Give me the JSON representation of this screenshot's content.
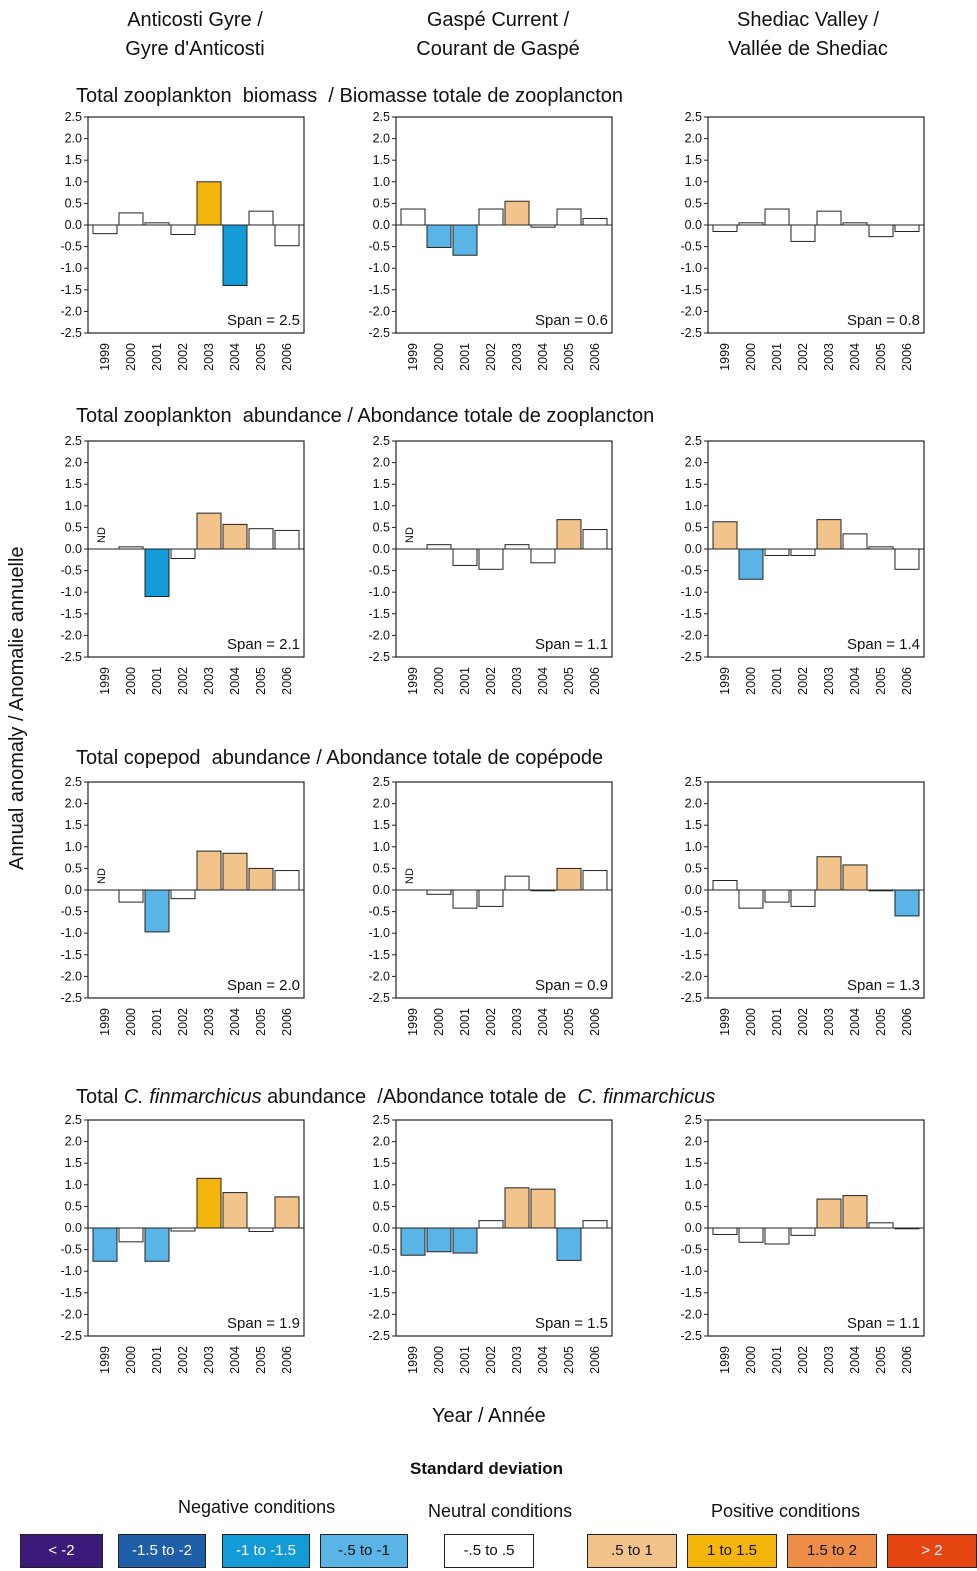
{
  "column_headers": [
    [
      "Anticosti Gyre /",
      "Gyre d'Anticosti"
    ],
    [
      "Gaspé Current /",
      "Courant de Gaspé"
    ],
    [
      "Shediac Valley /",
      "Vallée de Shediac"
    ]
  ],
  "row_titles": [
    "Total zooplankton  biomass  / Biomasse totale de zooplancton",
    "Total zooplankton  abundance / Abondance totale de zooplancton",
    "Total copepod  abundance / Abondance totale de copépode",
    {
      "pre": "Total ",
      "italic1": "C. finmarchicus",
      "mid": " abundance  /Abondance totale de  ",
      "italic2": "C. finmarchicus"
    }
  ],
  "y_axis_title": "Annual anomaly  / Anomalie annuelle",
  "x_axis_title": "Year / Année",
  "legend": {
    "title": "Standard deviation",
    "groups": [
      "Negative conditions",
      "Neutral conditions",
      "Positive conditions"
    ],
    "items": [
      {
        "label": "< -2",
        "color": "#3b1a7a",
        "text_color": "#ffffff"
      },
      {
        "label": "-1.5 to -2",
        "color": "#1f5fa8",
        "text_color": "#ffffff"
      },
      {
        "label": "-1 to -1.5",
        "color": "#139bd8",
        "text_color": "#ffffff"
      },
      {
        "label": "-.5 to -1",
        "color": "#5ab4e5",
        "text_color": "#111111"
      },
      {
        "label": "-.5 to .5",
        "color": "#ffffff",
        "text_color": "#111111"
      },
      {
        "label": ".5 to 1",
        "color": "#f2c48c",
        "text_color": "#111111"
      },
      {
        "label": "1 to 1.5",
        "color": "#f4b50c",
        "text_color": "#111111"
      },
      {
        "label": "1.5 to 2",
        "color": "#ee8d48",
        "text_color": "#111111"
      },
      {
        "label": "> 2",
        "color": "#e64611",
        "text_color": "#ffffff"
      }
    ]
  },
  "chart_data": [
    {
      "type": "bar",
      "region": "Anticosti Gyre",
      "variable": "Total zooplankton biomass",
      "categories": [
        "1999",
        "2000",
        "2001",
        "2002",
        "2003",
        "2004",
        "2005",
        "2006"
      ],
      "values": [
        -0.2,
        0.28,
        0.05,
        -0.22,
        1.0,
        -1.4,
        0.32,
        -0.48
      ],
      "ylim": [
        -2.5,
        2.5
      ],
      "yticks": [
        "2.5",
        "2.0",
        "1.5",
        "1.0",
        "0.5",
        "0.0",
        "-0.5",
        "-1.0",
        "-1.5",
        "-2.0",
        "-2.5"
      ],
      "span": "Span = 2.5",
      "nd": null
    },
    {
      "type": "bar",
      "region": "Gaspé Current",
      "variable": "Total zooplankton biomass",
      "categories": [
        "1999",
        "2000",
        "2001",
        "2002",
        "2003",
        "2004",
        "2005",
        "2006"
      ],
      "values": [
        0.37,
        -0.52,
        -0.7,
        0.37,
        0.55,
        -0.05,
        0.37,
        0.15
      ],
      "ylim": [
        -2.5,
        2.5
      ],
      "yticks": [
        "2.5",
        "2.0",
        "1.5",
        "1.0",
        "0.5",
        "0.0",
        "-0.5",
        "-1.0",
        "-1.5",
        "-2.0",
        "-2.5"
      ],
      "span": "Span = 0.6",
      "nd": null
    },
    {
      "type": "bar",
      "region": "Shediac Valley",
      "variable": "Total zooplankton biomass",
      "categories": [
        "1999",
        "2000",
        "2001",
        "2002",
        "2003",
        "2004",
        "2005",
        "2006"
      ],
      "values": [
        -0.15,
        0.05,
        0.37,
        -0.38,
        0.32,
        0.05,
        -0.27,
        -0.15
      ],
      "ylim": [
        -2.5,
        2.5
      ],
      "yticks": [
        "2.5",
        "2.0",
        "1.5",
        "1.0",
        "0.5",
        "0.0",
        "-0.5",
        "-1.0",
        "-1.5",
        "-2.0",
        "-2.5"
      ],
      "span": "Span = 0.8",
      "nd": null
    },
    {
      "type": "bar",
      "region": "Anticosti Gyre",
      "variable": "Total zooplankton abundance",
      "categories": [
        "1999",
        "2000",
        "2001",
        "2002",
        "2003",
        "2004",
        "2005",
        "2006"
      ],
      "values": [
        null,
        0.05,
        -1.1,
        -0.22,
        0.83,
        0.57,
        0.47,
        0.43
      ],
      "ylim": [
        -2.5,
        2.5
      ],
      "yticks": [
        "2.5",
        "2.0",
        "1.5",
        "1.0",
        "0.5",
        "0.0",
        "-0.5",
        "-1.0",
        "-1.5",
        "-2.0",
        "-2.5"
      ],
      "span": "Span = 2.1",
      "nd": "ND"
    },
    {
      "type": "bar",
      "region": "Gaspé Current",
      "variable": "Total zooplankton abundance",
      "categories": [
        "1999",
        "2000",
        "2001",
        "2002",
        "2003",
        "2004",
        "2005",
        "2006"
      ],
      "values": [
        null,
        0.1,
        -0.38,
        -0.47,
        0.1,
        -0.32,
        0.68,
        0.45
      ],
      "ylim": [
        -2.5,
        2.5
      ],
      "yticks": [
        "2.5",
        "2.0",
        "1.5",
        "1.0",
        "0.5",
        "0.0",
        "-0.5",
        "-1.0",
        "-1.5",
        "-2.0",
        "-2.5"
      ],
      "span": "Span = 1.1",
      "nd": "ND"
    },
    {
      "type": "bar",
      "region": "Shediac Valley",
      "variable": "Total zooplankton abundance",
      "categories": [
        "1999",
        "2000",
        "2001",
        "2002",
        "2003",
        "2004",
        "2005",
        "2006"
      ],
      "values": [
        0.63,
        -0.7,
        -0.15,
        -0.15,
        0.68,
        0.35,
        0.05,
        -0.47
      ],
      "ylim": [
        -2.5,
        2.5
      ],
      "yticks": [
        "2.5",
        "2.0",
        "1.5",
        "1.0",
        "0.5",
        "0.0",
        "-0.5",
        "-1.0",
        "-1.5",
        "-2.0",
        "-2.5"
      ],
      "span": "Span = 1.4",
      "nd": null
    },
    {
      "type": "bar",
      "region": "Anticosti Gyre",
      "variable": "Total copepod abundance",
      "categories": [
        "1999",
        "2000",
        "2001",
        "2002",
        "2003",
        "2004",
        "2005",
        "2006"
      ],
      "values": [
        null,
        -0.28,
        -0.97,
        -0.2,
        0.9,
        0.85,
        0.5,
        0.45
      ],
      "ylim": [
        -2.5,
        2.5
      ],
      "yticks": [
        "2.5",
        "2.0",
        "1.5",
        "1.0",
        "0.5",
        "0.0",
        "-0.5",
        "-1.0",
        "-1.5",
        "-2.0",
        "-2.5"
      ],
      "span": "Span = 2.0",
      "nd": "ND"
    },
    {
      "type": "bar",
      "region": "Gaspé Current",
      "variable": "Total copepod abundance",
      "categories": [
        "1999",
        "2000",
        "2001",
        "2002",
        "2003",
        "2004",
        "2005",
        "2006"
      ],
      "values": [
        null,
        -0.1,
        -0.42,
        -0.38,
        0.32,
        0.0,
        0.5,
        0.45
      ],
      "ylim": [
        -2.5,
        2.5
      ],
      "yticks": [
        "2.5",
        "2.0",
        "1.5",
        "1.0",
        "0.5",
        "0.0",
        "-0.5",
        "-1.0",
        "-1.5",
        "-2.0",
        "-2.5"
      ],
      "span": "Span = 0.9",
      "nd": "ND"
    },
    {
      "type": "bar",
      "region": "Shediac Valley",
      "variable": "Total copepod abundance",
      "categories": [
        "1999",
        "2000",
        "2001",
        "2002",
        "2003",
        "2004",
        "2005",
        "2006"
      ],
      "values": [
        0.22,
        -0.42,
        -0.28,
        -0.38,
        0.77,
        0.58,
        0.0,
        -0.6
      ],
      "ylim": [
        -2.5,
        2.5
      ],
      "yticks": [
        "2.5",
        "2.0",
        "1.5",
        "1.0",
        "0.5",
        "0.0",
        "-0.5",
        "-1.0",
        "-1.5",
        "-2.0",
        "-2.5"
      ],
      "span": "Span = 1.3",
      "nd": null
    },
    {
      "type": "bar",
      "region": "Anticosti Gyre",
      "variable": "Total C. finmarchicus abundance",
      "categories": [
        "1999",
        "2000",
        "2001",
        "2002",
        "2003",
        "2004",
        "2005",
        "2006"
      ],
      "values": [
        -0.77,
        -0.32,
        -0.77,
        -0.07,
        1.15,
        0.82,
        -0.08,
        0.72
      ],
      "ylim": [
        -2.5,
        2.5
      ],
      "yticks": [
        "2.5",
        "2.0",
        "1.5",
        "1.0",
        "0.5",
        "0.0",
        "-0.5",
        "-1.0",
        "-1.5",
        "-2.0",
        "-2.5"
      ],
      "span": "Span = 1.9",
      "nd": null
    },
    {
      "type": "bar",
      "region": "Gaspé Current",
      "variable": "Total C. finmarchicus abundance",
      "categories": [
        "1999",
        "2000",
        "2001",
        "2002",
        "2003",
        "2004",
        "2005",
        "2006"
      ],
      "values": [
        -0.63,
        -0.55,
        -0.58,
        0.17,
        0.93,
        0.9,
        -0.75,
        0.17
      ],
      "ylim": [
        -2.5,
        2.5
      ],
      "yticks": [
        "2.5",
        "2.0",
        "1.5",
        "1.0",
        "0.5",
        "0.0",
        "-0.5",
        "-1.0",
        "-1.5",
        "-2.0",
        "-2.5"
      ],
      "span": "Span = 1.5",
      "nd": null
    },
    {
      "type": "bar",
      "region": "Shediac Valley",
      "variable": "Total C. finmarchicus abundance",
      "categories": [
        "1999",
        "2000",
        "2001",
        "2002",
        "2003",
        "2004",
        "2005",
        "2006"
      ],
      "values": [
        -0.15,
        -0.33,
        -0.37,
        -0.17,
        0.67,
        0.75,
        0.12,
        0.0
      ],
      "ylim": [
        -2.5,
        2.5
      ],
      "yticks": [
        "2.5",
        "2.0",
        "1.5",
        "1.0",
        "0.5",
        "0.0",
        "-0.5",
        "-1.0",
        "-1.5",
        "-2.0",
        "-2.5"
      ],
      "span": "Span = 1.1",
      "nd": null
    }
  ]
}
